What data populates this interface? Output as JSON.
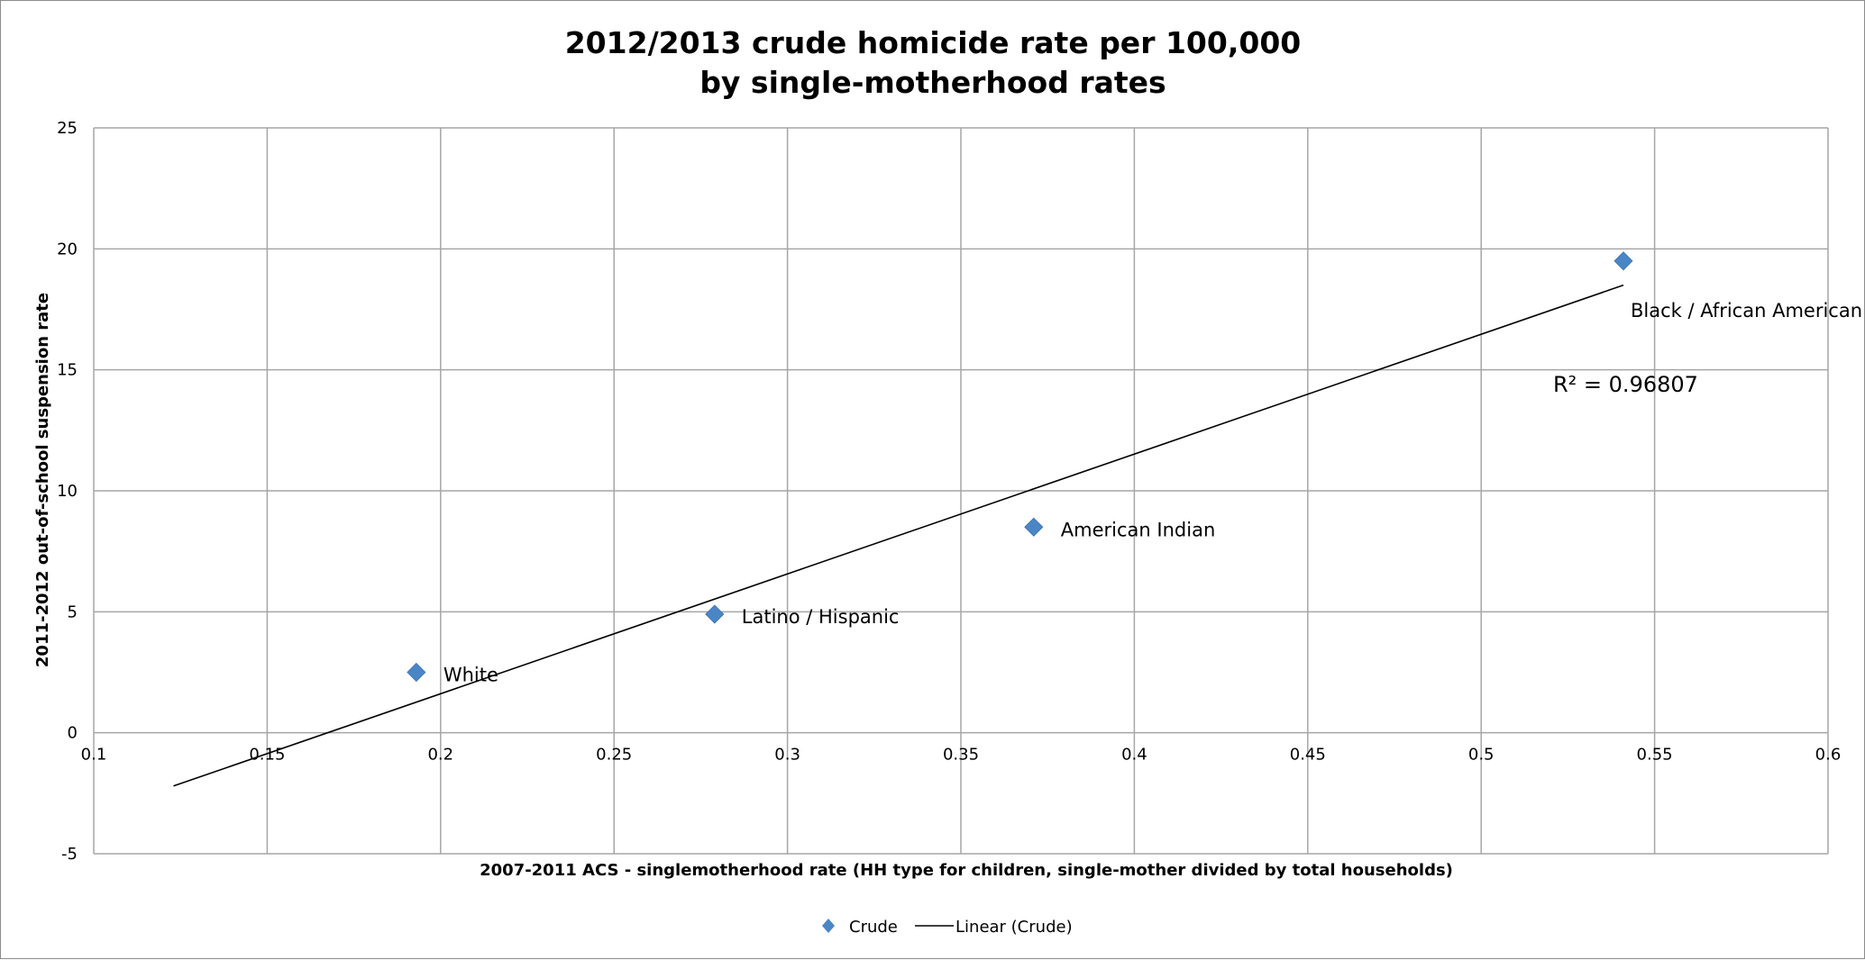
{
  "chart_data": {
    "type": "scatter",
    "title_lines": [
      "2012/2013 crude homicide rate per 100,000",
      "by single-motherhood rates"
    ],
    "xlabel": "2007-2011 ACS - singlemotherhood rate (HH type for children, single-mother divided by total households)",
    "ylabel": "2011-2012 out-of-school suspension rate",
    "xlim": [
      0.1,
      0.6
    ],
    "ylim": [
      -5,
      25
    ],
    "x_ticks": [
      0.1,
      0.15,
      0.2,
      0.25,
      0.3,
      0.35,
      0.4,
      0.45,
      0.5,
      0.55,
      0.6
    ],
    "x_tick_labels": [
      "0.1",
      "0.15",
      "0.2",
      "0.25",
      "0.3",
      "0.35",
      "0.4",
      "0.45",
      "0.5",
      "0.55",
      "0.6"
    ],
    "y_ticks": [
      -5,
      0,
      5,
      10,
      15,
      20,
      25
    ],
    "y_tick_labels": [
      "-5",
      "0",
      "5",
      "10",
      "15",
      "20",
      "25"
    ],
    "grid": true,
    "series": [
      {
        "name": "Crude",
        "color": "#4a86c5",
        "marker": "diamond",
        "points": [
          {
            "x": 0.193,
            "y": 2.5,
            "label": "White"
          },
          {
            "x": 0.279,
            "y": 4.9,
            "label": "Latino / Hispanic"
          },
          {
            "x": 0.371,
            "y": 8.5,
            "label": "American Indian"
          },
          {
            "x": 0.541,
            "y": 19.5,
            "label": "Black / African American"
          }
        ]
      }
    ],
    "trendline": {
      "name": "Linear (Crude)",
      "color": "#000000",
      "x_start": 0.123,
      "y_start": -2.2,
      "x_end": 0.541,
      "y_end": 18.5,
      "r_squared_label": "R² = 0.96807"
    },
    "legend": {
      "position": "bottom",
      "items": [
        {
          "label": "Crude",
          "symbol": "diamond",
          "color": "#4a86c5"
        },
        {
          "label": "Linear (Crude)",
          "symbol": "line",
          "color": "#000000"
        }
      ]
    }
  }
}
